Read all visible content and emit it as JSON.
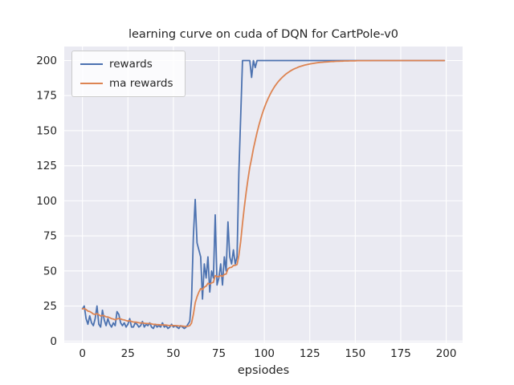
{
  "figure": {
    "colors": {
      "plot_bg": "#eaeaf2",
      "grid": "#ffffff",
      "text": "#262626",
      "rewards": "#4c72b0",
      "ma_rewards": "#dd8452"
    }
  },
  "chart_data": {
    "type": "line",
    "title": "learning curve on cuda of DQN for CartPole-v0",
    "xlabel": "epsiodes",
    "ylabel": "",
    "grid": true,
    "legend_position": "upper left",
    "x_is_index": true,
    "xlim": [
      -10,
      209
    ],
    "ylim": [
      -1,
      210
    ],
    "xticks": [
      0,
      25,
      50,
      75,
      100,
      125,
      150,
      175,
      200
    ],
    "yticks": [
      0,
      25,
      50,
      75,
      100,
      125,
      150,
      175,
      200
    ],
    "series": [
      {
        "name": "rewards",
        "color": "#4c72b0",
        "values": [
          23,
          25,
          16,
          12,
          18,
          13,
          11,
          16,
          25,
          12,
          10,
          22,
          15,
          11,
          16,
          12,
          10,
          13,
          11,
          21,
          19,
          13,
          11,
          13,
          10,
          12,
          16,
          10,
          10,
          13,
          12,
          10,
          11,
          14,
          10,
          12,
          11,
          13,
          10,
          9,
          12,
          10,
          11,
          10,
          13,
          10,
          11,
          9,
          10,
          12,
          10,
          11,
          10,
          9,
          11,
          10,
          9,
          10,
          12,
          14,
          30,
          75,
          101,
          70,
          65,
          60,
          30,
          55,
          45,
          60,
          35,
          50,
          45,
          90,
          40,
          45,
          55,
          40,
          60,
          50,
          85,
          60,
          55,
          65,
          55,
          60,
          120,
          160,
          200,
          200,
          200,
          200,
          200,
          188,
          200,
          195,
          200,
          200,
          200,
          200,
          200,
          200,
          200,
          200,
          200,
          200,
          200,
          200,
          200,
          200,
          200,
          200,
          200,
          200,
          200,
          200,
          200,
          200,
          200,
          200,
          200,
          200,
          200,
          200,
          200,
          200,
          200,
          200,
          200,
          200,
          200,
          200,
          200,
          200,
          200,
          200,
          200,
          200,
          200,
          200,
          200,
          200,
          200,
          200,
          200,
          200,
          200,
          200,
          200,
          200,
          200,
          200,
          200,
          200,
          200,
          200,
          200,
          200,
          200,
          200,
          200,
          200,
          200,
          200,
          200,
          200,
          200,
          200,
          200,
          200,
          200,
          200,
          200,
          200,
          200,
          200,
          200,
          200,
          200,
          200,
          200,
          200,
          200,
          200,
          200,
          200,
          200,
          200,
          200,
          200,
          200,
          200,
          200,
          200,
          200,
          200,
          200,
          200,
          200,
          200
        ]
      },
      {
        "name": "ma rewards",
        "color": "#dd8452",
        "values": [
          23.0,
          23.2,
          22.5,
          21.4,
          21.1,
          20.3,
          19.3,
          19.0,
          19.6,
          18.8,
          17.9,
          18.3,
          18.0,
          17.3,
          17.2,
          16.7,
          16.0,
          15.7,
          15.2,
          15.8,
          16.1,
          15.8,
          15.3,
          15.1,
          14.6,
          14.3,
          14.5,
          14.0,
          13.6,
          13.6,
          13.4,
          13.1,
          12.9,
          13.0,
          12.7,
          12.6,
          12.5,
          12.5,
          12.3,
          11.9,
          11.9,
          11.7,
          11.7,
          11.5,
          11.6,
          11.5,
          11.4,
          11.2,
          11.1,
          11.2,
          11.1,
          11.1,
          11.0,
          10.8,
          10.8,
          10.7,
          10.5,
          10.5,
          10.6,
          11.0,
          12.9,
          19.1,
          27.3,
          31.6,
          34.9,
          37.4,
          36.7,
          38.5,
          39.2,
          41.2,
          40.6,
          41.5,
          41.9,
          46.7,
          46.0,
          45.9,
          46.8,
          46.1,
          47.5,
          47.8,
          51.5,
          52.4,
          52.6,
          53.9,
          54.0,
          54.6,
          61.1,
          71.0,
          83.9,
          95.5,
          106.0,
          115.4,
          123.8,
          130.2,
          137.2,
          143.0,
          148.7,
          153.8,
          158.4,
          162.6,
          166.3,
          169.7,
          172.7,
          175.4,
          177.9,
          180.1,
          182.1,
          183.9,
          185.5,
          186.9,
          188.2,
          189.4,
          190.5,
          191.4,
          192.3,
          193.1,
          193.8,
          194.4,
          194.9,
          195.5,
          195.9,
          196.3,
          196.7,
          197.0,
          197.3,
          197.6,
          197.8,
          198.0,
          198.2,
          198.4,
          198.6,
          198.7,
          198.8,
          198.9,
          199.0,
          199.1,
          199.2,
          199.3,
          199.3,
          199.4,
          199.5,
          199.5,
          199.6,
          199.6,
          199.7,
          199.7,
          199.7,
          199.8,
          199.8,
          199.8,
          199.8,
          199.9,
          199.9,
          199.9,
          199.9,
          199.9,
          199.9,
          199.9,
          199.9,
          200.0,
          200.0,
          200.0,
          200.0,
          200.0,
          200.0,
          200.0,
          200.0,
          200.0,
          200.0,
          200.0,
          200.0,
          200.0,
          200.0,
          200.0,
          200.0,
          200.0,
          200.0,
          200.0,
          200.0,
          200.0,
          200.0,
          200.0,
          200.0,
          200.0,
          200.0,
          200.0,
          200.0,
          200.0,
          200.0,
          200.0,
          200.0,
          200.0,
          200.0,
          200.0,
          200.0,
          200.0,
          200.0,
          200.0,
          200.0,
          200.0
        ]
      }
    ]
  }
}
